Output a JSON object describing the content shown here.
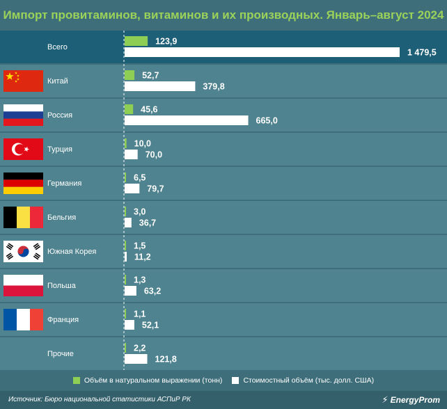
{
  "title": "Импорт провитаминов, витаминов и их производных. Январь–август 2024",
  "colors": {
    "background": "#3e6e7a",
    "row_band": "#4f838f",
    "total_band": "#1e5f78",
    "volume_bar": "#8fce55",
    "value_bar": "#ffffff",
    "title": "#9bd25a"
  },
  "legend": {
    "volume_label": "Объём в натуральном выражении (тонн)",
    "value_label": "Стоимостный объём (тыс. долл. США)"
  },
  "source": "Источник: Бюро национальной статистики АСПиР РК",
  "brand": "EnergyProm",
  "chart_data": {
    "type": "bar",
    "orientation": "horizontal",
    "categories": [
      "Всего",
      "Китай",
      "Россия",
      "Турция",
      "Германия",
      "Бельгия",
      "Южная Корея",
      "Польша",
      "Франция",
      "Прочие"
    ],
    "flags": [
      "",
      "china-flag",
      "russia-flag",
      "turkey-flag",
      "germany-flag",
      "belgium-flag",
      "south-korea-flag",
      "poland-flag",
      "france-flag",
      ""
    ],
    "series": [
      {
        "name": "Объём в натуральном выражении (тонн)",
        "values": [
          123.9,
          52.7,
          45.6,
          10.0,
          6.5,
          3.0,
          1.5,
          1.3,
          1.1,
          2.2
        ],
        "labels": [
          "123,9",
          "52,7",
          "45,6",
          "10,0",
          "6,5",
          "3,0",
          "1,5",
          "1,3",
          "1,1",
          "2,2"
        ],
        "color": "#8fce55"
      },
      {
        "name": "Стоимостный объём (тыс. долл. США)",
        "values": [
          1479.5,
          379.8,
          665.0,
          70.0,
          79.7,
          36.7,
          11.2,
          63.2,
          52.1,
          121.8
        ],
        "labels": [
          "1 479,5",
          "379,8",
          "665,0",
          "70,0",
          "79,7",
          "36,7",
          "11,2",
          "63,2",
          "52,1",
          "121,8"
        ],
        "color": "#ffffff"
      }
    ],
    "grid": false,
    "legend_position": "bottom"
  }
}
